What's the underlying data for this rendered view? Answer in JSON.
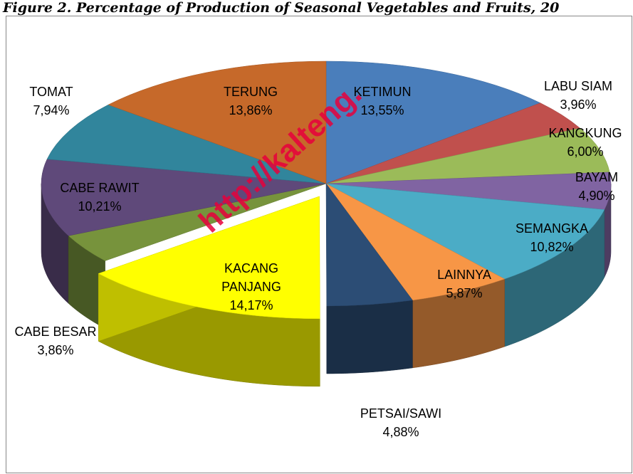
{
  "chart_data": {
    "type": "pie3d",
    "title": "Figure 2.  Percentage of Production of Seasonal Vegetables and Fruits, 20",
    "watermark": "http://kalteng.",
    "categories": [
      "KETIMUN",
      "LABU SIAM",
      "KANGKUNG",
      "BAYAM",
      "SEMANGKA",
      "LAINNYA",
      "PETSAI/SAWI",
      "KACANG PANJANG",
      "CABE BESAR",
      "CABE RAWIT",
      "TOMAT",
      "TERUNG"
    ],
    "values": [
      13.55,
      3.96,
      6.0,
      4.9,
      10.82,
      5.87,
      4.88,
      14.17,
      3.86,
      10.21,
      7.94,
      13.86
    ],
    "value_labels": [
      "13,55%",
      "3,96%",
      "6,00%",
      "4,90%",
      "10,82%",
      "5,87%",
      "4,88%",
      "14,17%",
      "3,86%",
      "10,21%",
      "7,94%",
      "13,86%"
    ],
    "colors": [
      "#4a7ebb",
      "#c0504d",
      "#9bbb59",
      "#8064a2",
      "#4bacc6",
      "#f79646",
      "#2c4d75",
      "#ffff00",
      "#77933c",
      "#5f497a",
      "#31859c",
      "#c6692a"
    ],
    "exploded": [
      7
    ]
  }
}
